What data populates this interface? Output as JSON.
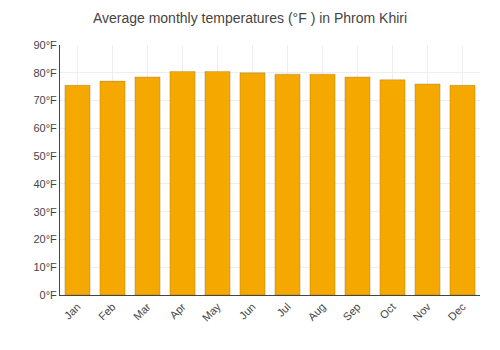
{
  "chart_data": {
    "type": "bar",
    "title": "Average monthly temperatures (°F ) in Phrom Khiri",
    "categories": [
      "Jan",
      "Feb",
      "Mar",
      "Apr",
      "May",
      "Jun",
      "Jul",
      "Aug",
      "Sep",
      "Oct",
      "Nov",
      "Dec"
    ],
    "values": [
      75.5,
      77.0,
      78.5,
      80.5,
      80.5,
      80.0,
      79.5,
      79.5,
      78.5,
      77.5,
      76.0,
      75.5
    ],
    "color": "#F5A800",
    "ylim": [
      0,
      90
    ],
    "yticks": [
      {
        "value": 0,
        "label": "0°F"
      },
      {
        "value": 10,
        "label": "10°F"
      },
      {
        "value": 20,
        "label": "20°F"
      },
      {
        "value": 30,
        "label": "30°F"
      },
      {
        "value": 40,
        "label": "40°F"
      },
      {
        "value": 50,
        "label": "50°F"
      },
      {
        "value": 60,
        "label": "60°F"
      },
      {
        "value": 70,
        "label": "70°F"
      },
      {
        "value": 80,
        "label": "80°F"
      },
      {
        "value": 90,
        "label": "90°F"
      }
    ],
    "grid": true
  }
}
